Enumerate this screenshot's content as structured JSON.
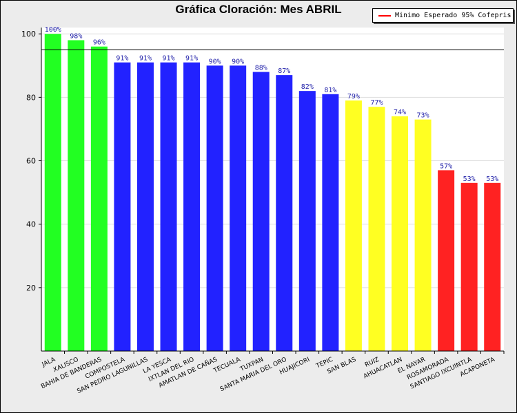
{
  "chart_data": {
    "type": "bar",
    "title": "Gráfica Cloración: Mes ABRIL",
    "categories": [
      "JALA",
      "XALISCO",
      "BAHIA DE BANDERAS",
      "COMPOSTELA",
      "SAN PEDRO LAGUNILLAS",
      "LA YESCA",
      "IXTLAN DEL RIO",
      "AMATLAN DE CAÑAS",
      "TECUALA",
      "TUXPAN",
      "SANTA MARIA DEL ORO",
      "HUAJICORI",
      "TEPIC",
      "SAN BLAS",
      "RUIZ",
      "AHUACATLAN",
      "EL NAYAR",
      "ROSAMORADA",
      "SANTIAGO IXCUINTLA",
      "ACAPONETA"
    ],
    "values": [
      100,
      98,
      96,
      91,
      91,
      91,
      91,
      90,
      90,
      88,
      87,
      82,
      81,
      79,
      77,
      74,
      73,
      57,
      53,
      53
    ],
    "labels": [
      "100%",
      "98%",
      "96%",
      "91%",
      "91%",
      "91%",
      "91%",
      "90%",
      "90%",
      "88%",
      "87%",
      "82%",
      "81%",
      "79%",
      "77%",
      "74%",
      "73%",
      "57%",
      "53%",
      "53%"
    ],
    "colors": [
      "#22ff22",
      "#22ff22",
      "#22ff22",
      "#2222ff",
      "#2222ff",
      "#2222ff",
      "#2222ff",
      "#2222ff",
      "#2222ff",
      "#2222ff",
      "#2222ff",
      "#2222ff",
      "#2222ff",
      "#ffff22",
      "#ffff22",
      "#ffff22",
      "#ffff22",
      "#ff2222",
      "#ff2222",
      "#ff2222"
    ],
    "yticks": [
      20,
      40,
      60,
      80,
      100
    ],
    "ylim": [
      0,
      102
    ],
    "threshold": {
      "value": 95,
      "label": "Minimo Esperado 95% Cofepris",
      "color": "#ff0000"
    },
    "legend": "top-right"
  }
}
